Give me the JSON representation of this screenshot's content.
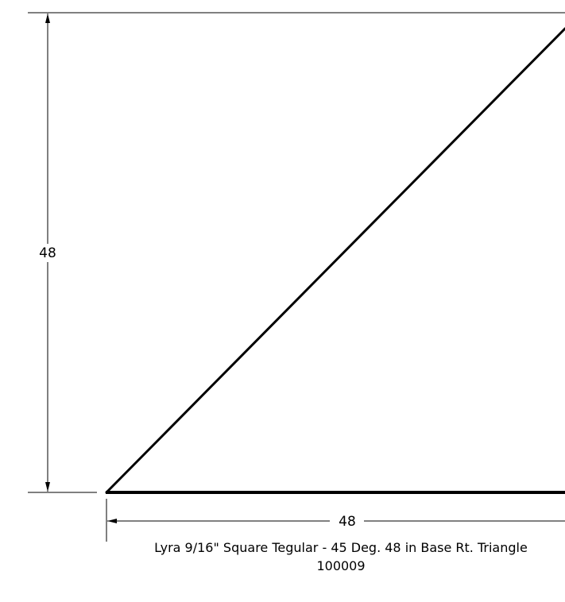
{
  "drawing": {
    "vertical_dimension": "48",
    "horizontal_dimension": "48",
    "caption_title": "Lyra 9/16\" Square Tegular - 45 Deg. 48 in Base Rt. Triangle",
    "part_number": "100009"
  }
}
